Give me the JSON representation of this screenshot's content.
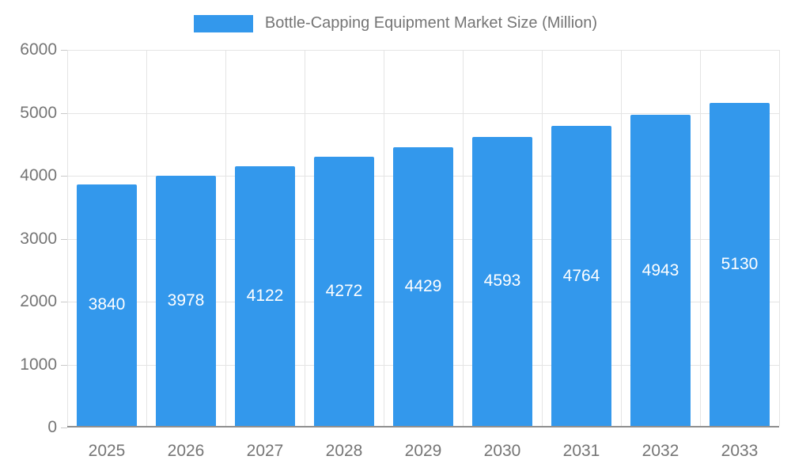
{
  "chart_data": {
    "type": "bar",
    "title": "Bottle-Capping Equipment Market Size (Million)",
    "categories": [
      "2025",
      "2026",
      "2027",
      "2028",
      "2029",
      "2030",
      "2031",
      "2032",
      "2033"
    ],
    "values": [
      3840,
      3978,
      4122,
      4272,
      4429,
      4593,
      4764,
      4943,
      5130
    ],
    "value_labels": [
      "3840",
      "3978",
      "4122",
      "4272",
      "4429",
      "4593",
      "4764",
      "4943",
      "5130"
    ],
    "xlabel": "",
    "ylabel": "",
    "ylim": [
      0,
      6000
    ],
    "yticks": [
      0,
      1000,
      2000,
      3000,
      4000,
      5000,
      6000
    ],
    "grid": true,
    "legend_position": "top-center",
    "bar_color": "#3398EC",
    "value_label_color": "#ffffff",
    "axis_text_color": "#757575",
    "grid_color": "#e4e4e4",
    "axis_line_color": "#8f8f8f"
  }
}
